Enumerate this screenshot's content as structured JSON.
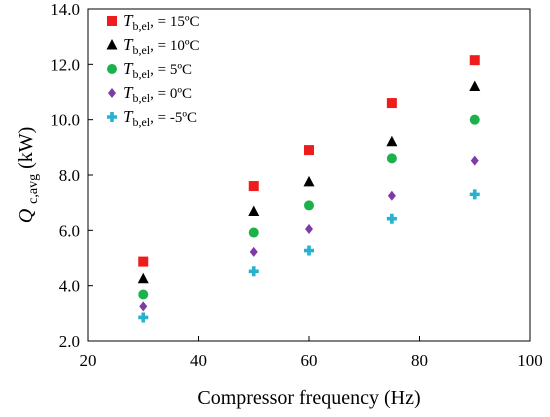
{
  "chart_data": {
    "type": "scatter",
    "xlabel": "Compressor frequency (Hz)",
    "ylabel": {
      "main": "Q",
      "sub": "c,avg",
      "unit": " (kW)"
    },
    "xlim": [
      20,
      100
    ],
    "ylim": [
      2.0,
      14.0
    ],
    "xticks": [
      20,
      40,
      60,
      80,
      100
    ],
    "xtick_labels": [
      "20",
      "40",
      "60",
      "80",
      "100"
    ],
    "yticks": [
      2.0,
      4.0,
      6.0,
      8.0,
      10.0,
      12.0,
      14.0
    ],
    "ytick_labels": [
      "2.0",
      "4.0",
      "6.0",
      "8.0",
      "10.0",
      "12.0",
      "14.0"
    ],
    "grid": false,
    "legend_position": "top-left",
    "x": [
      30,
      50,
      60,
      75,
      90
    ],
    "series": [
      {
        "name": "Tb,el, = 15ºC",
        "label_main": "T",
        "label_sub": "b,el",
        "label_rest": ", = 15ºC",
        "marker": "square",
        "color": "#ee1c1c",
        "values": [
          4.87,
          7.6,
          8.9,
          10.6,
          12.15
        ]
      },
      {
        "name": "Tb,el, = 10ºC",
        "label_main": "T",
        "label_sub": "b,el",
        "label_rest": ", = 10ºC",
        "marker": "triangle",
        "color": "#000000",
        "values": [
          4.25,
          6.68,
          7.75,
          9.2,
          11.2
        ]
      },
      {
        "name": "Tb,el, = 5ºC",
        "label_main": "T",
        "label_sub": "b,el",
        "label_rest": ", = 5ºC",
        "marker": "circle",
        "color": "#1bb24b",
        "values": [
          3.68,
          5.92,
          6.9,
          8.6,
          10.0
        ]
      },
      {
        "name": "Tb,el, = 0ºC",
        "label_main": "T",
        "label_sub": "b,el",
        "label_rest": ", = 0ºC",
        "marker": "diamond",
        "color": "#7e3ba6",
        "values": [
          3.25,
          5.22,
          6.05,
          7.25,
          8.52
        ]
      },
      {
        "name": "Tb,el, = -5ºC",
        "label_main": "T",
        "label_sub": "b,el",
        "label_rest": ", = -5ºC",
        "marker": "cross",
        "color": "#26b2cf",
        "values": [
          2.85,
          4.52,
          5.27,
          6.42,
          7.3
        ]
      }
    ]
  }
}
